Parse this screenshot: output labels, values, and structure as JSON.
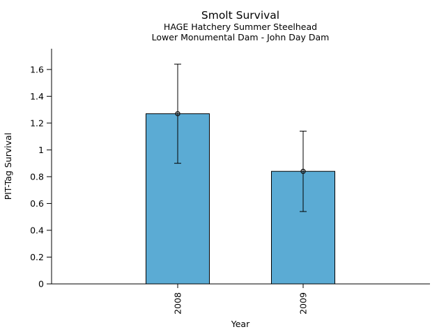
{
  "chart_data": {
    "type": "bar",
    "title": "Smolt Survival",
    "subtitle1": "HAGE Hatchery Summer Steelhead",
    "subtitle2": "Lower Monumental Dam - John Day Dam",
    "xlabel": "Year",
    "ylabel": "PIT-Tag Survival",
    "categories": [
      "2008",
      "2009"
    ],
    "values": [
      1.27,
      0.84
    ],
    "error_low": [
      0.9,
      0.54
    ],
    "error_high": [
      1.64,
      1.14
    ],
    "ytick_values": [
      0,
      0.2,
      0.4,
      0.6,
      0.8,
      1,
      1.2,
      1.4,
      1.6
    ],
    "ytick_labels": [
      "0",
      "0.2",
      "0.4",
      "0.6",
      "0.8",
      "1",
      "1.2",
      "1.4",
      "1.6"
    ],
    "ylim": [
      0,
      1.755
    ],
    "grid": false,
    "legend_position": "none",
    "bar_color": "#5BABD4",
    "bar_edge_color": "#000000",
    "errorbar_color": "#000000",
    "marker": "open-circle",
    "axis_color": "#000000",
    "text_color": "#000000"
  }
}
